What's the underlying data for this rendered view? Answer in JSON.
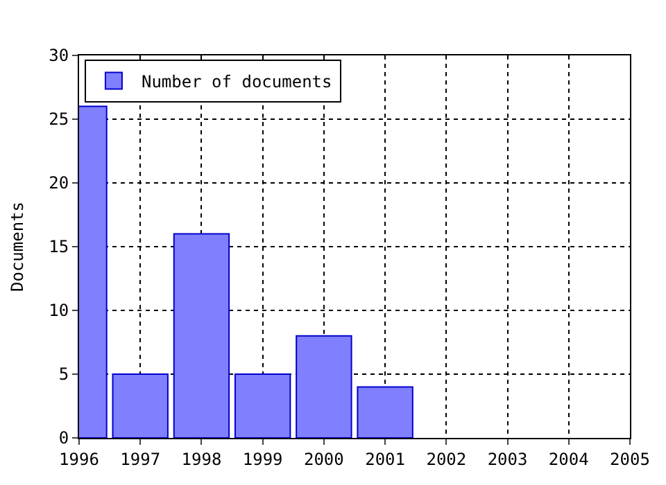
{
  "chart_data": {
    "type": "bar",
    "ylabel": "Documents",
    "x": [
      1996,
      1997,
      1998,
      1999,
      2000,
      2001
    ],
    "series": [
      {
        "name": "Number of documents",
        "color": "#8080ff",
        "values": [
          26,
          5,
          16,
          5,
          8,
          4
        ]
      }
    ],
    "xlim": [
      1996,
      2005
    ],
    "xticks": [
      1996,
      1997,
      1998,
      1999,
      2000,
      2001,
      2002,
      2003,
      2004,
      2005
    ],
    "ylim": [
      0,
      30
    ],
    "yticks": [
      0,
      5,
      10,
      15,
      20,
      25,
      30
    ],
    "grid": true,
    "legend": "top left"
  }
}
